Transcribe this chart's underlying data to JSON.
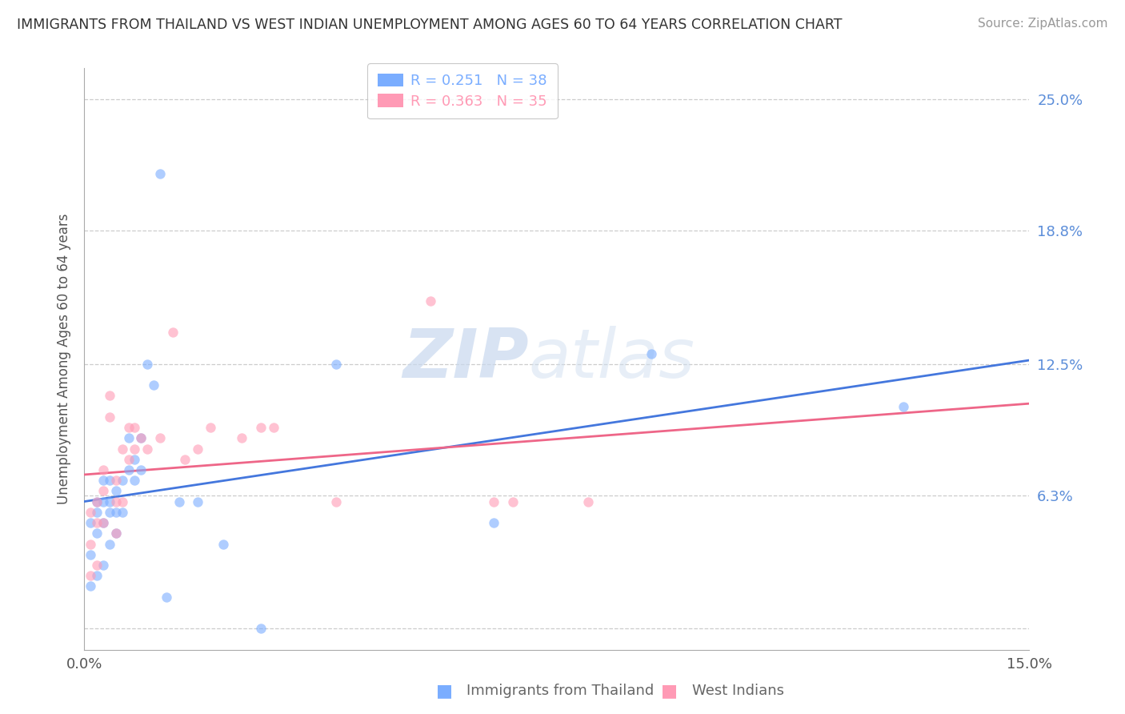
{
  "title": "IMMIGRANTS FROM THAILAND VS WEST INDIAN UNEMPLOYMENT AMONG AGES 60 TO 64 YEARS CORRELATION CHART",
  "source": "Source: ZipAtlas.com",
  "ylabel": "Unemployment Among Ages 60 to 64 years",
  "xlim": [
    0.0,
    0.15
  ],
  "ylim": [
    -0.01,
    0.265
  ],
  "ytick_values": [
    0.0,
    0.063,
    0.125,
    0.188,
    0.25
  ],
  "ytick_labels": [
    "",
    "6.3%",
    "12.5%",
    "18.8%",
    "25.0%"
  ],
  "legend_labels": [
    "Immigrants from Thailand",
    "West Indians"
  ],
  "blue_color": "#7aadff",
  "pink_color": "#ff9ab5",
  "blue_line_color": "#4477dd",
  "pink_line_color": "#ee6688",
  "R_blue": 0.251,
  "N_blue": 38,
  "R_pink": 0.363,
  "N_pink": 35,
  "blue_scatter_x": [
    0.001,
    0.001,
    0.001,
    0.002,
    0.002,
    0.002,
    0.002,
    0.003,
    0.003,
    0.003,
    0.003,
    0.004,
    0.004,
    0.004,
    0.004,
    0.005,
    0.005,
    0.005,
    0.006,
    0.006,
    0.007,
    0.007,
    0.008,
    0.008,
    0.009,
    0.009,
    0.01,
    0.011,
    0.012,
    0.013,
    0.015,
    0.018,
    0.022,
    0.028,
    0.04,
    0.065,
    0.09,
    0.13
  ],
  "blue_scatter_y": [
    0.02,
    0.035,
    0.05,
    0.025,
    0.045,
    0.055,
    0.06,
    0.03,
    0.05,
    0.06,
    0.07,
    0.04,
    0.055,
    0.06,
    0.07,
    0.045,
    0.055,
    0.065,
    0.055,
    0.07,
    0.075,
    0.09,
    0.07,
    0.08,
    0.075,
    0.09,
    0.125,
    0.115,
    0.215,
    0.015,
    0.06,
    0.06,
    0.04,
    0.0,
    0.125,
    0.05,
    0.13,
    0.105
  ],
  "pink_scatter_x": [
    0.001,
    0.001,
    0.001,
    0.002,
    0.002,
    0.002,
    0.003,
    0.003,
    0.003,
    0.004,
    0.004,
    0.005,
    0.005,
    0.005,
    0.006,
    0.006,
    0.007,
    0.007,
    0.008,
    0.008,
    0.009,
    0.01,
    0.012,
    0.014,
    0.016,
    0.018,
    0.02,
    0.025,
    0.028,
    0.03,
    0.04,
    0.055,
    0.065,
    0.068,
    0.08
  ],
  "pink_scatter_y": [
    0.025,
    0.04,
    0.055,
    0.03,
    0.05,
    0.06,
    0.05,
    0.065,
    0.075,
    0.1,
    0.11,
    0.045,
    0.06,
    0.07,
    0.06,
    0.085,
    0.08,
    0.095,
    0.085,
    0.095,
    0.09,
    0.085,
    0.09,
    0.14,
    0.08,
    0.085,
    0.095,
    0.09,
    0.095,
    0.095,
    0.06,
    0.155,
    0.06,
    0.06,
    0.06
  ],
  "watermark_zip": "ZIP",
  "watermark_atlas": "atlas",
  "background_color": "#ffffff",
  "grid_color": "#cccccc"
}
